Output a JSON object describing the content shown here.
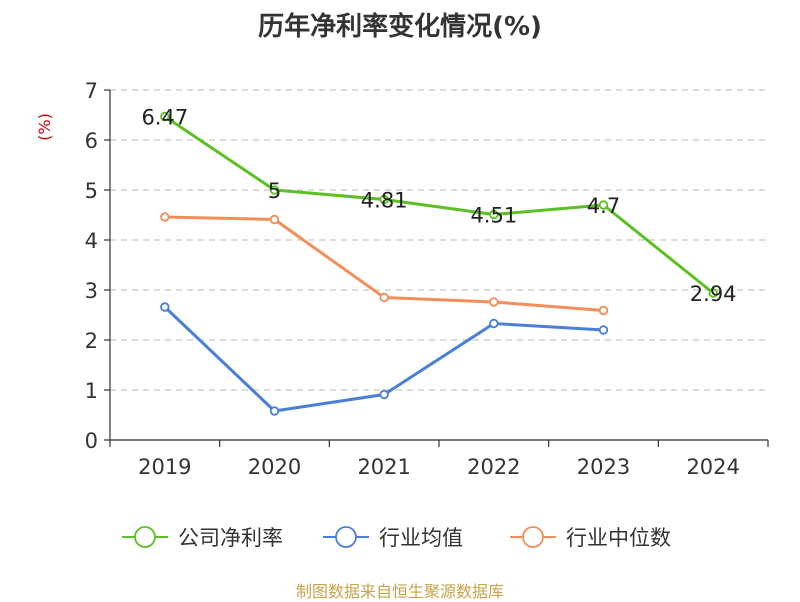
{
  "chart_data": {
    "type": "line",
    "title": "历年净利率变化情况(%)",
    "ylabel": "(%)",
    "xlabel": "",
    "categories": [
      "2019",
      "2020",
      "2021",
      "2022",
      "2023",
      "2024"
    ],
    "ylim": [
      0,
      7
    ],
    "yticks": [
      0,
      1,
      2,
      3,
      4,
      5,
      6,
      7
    ],
    "grid": true,
    "legend_position": "bottom",
    "series": [
      {
        "name": "公司净利率",
        "color": "#5cc024",
        "values": [
          6.47,
          5.0,
          4.81,
          4.51,
          4.7,
          2.94
        ],
        "labels": [
          "6.47",
          "5",
          "4.81",
          "4.51",
          "4.7",
          "2.94"
        ]
      },
      {
        "name": "行业均值",
        "color": "#4a7fd8",
        "values": [
          2.66,
          0.58,
          0.91,
          2.33,
          2.2,
          null
        ]
      },
      {
        "name": "行业中位数",
        "color": "#f38d5b",
        "values": [
          4.46,
          4.41,
          2.85,
          2.76,
          2.59,
          null
        ]
      }
    ]
  },
  "footer": {
    "source": "制图数据来自恒生聚源数据库"
  }
}
